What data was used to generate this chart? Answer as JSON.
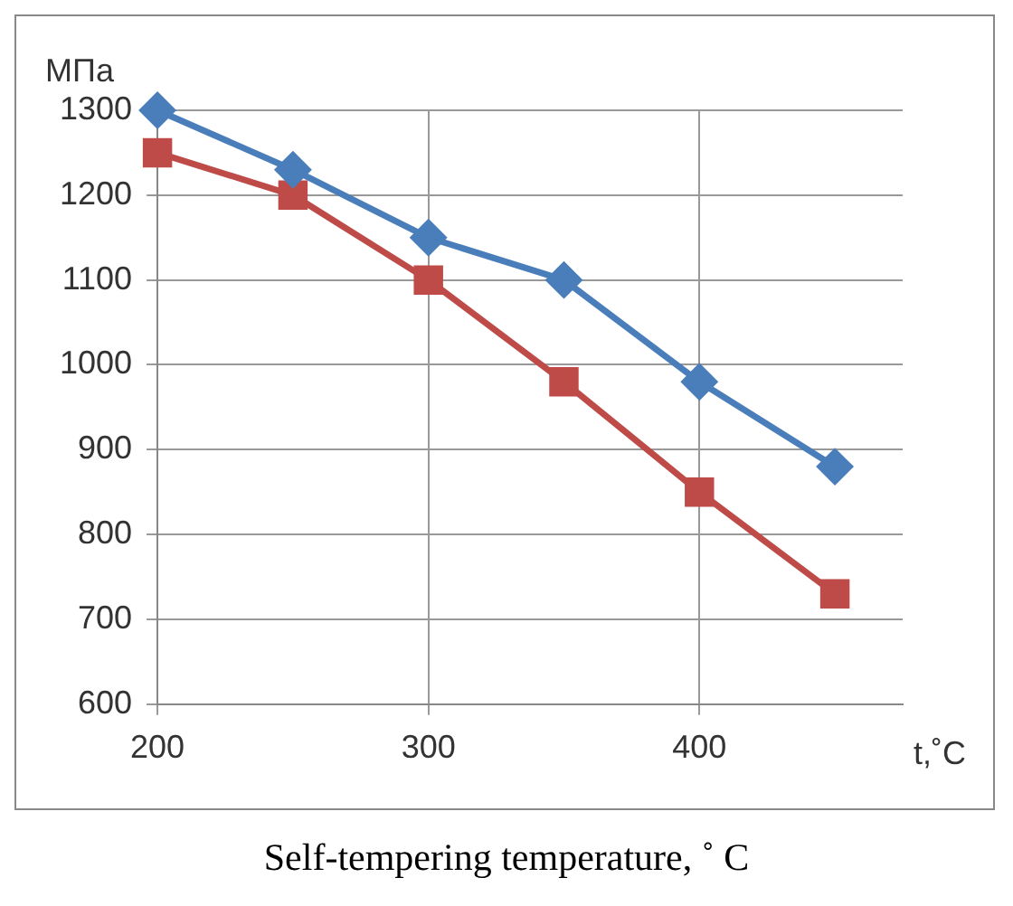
{
  "chart_data": {
    "type": "line",
    "xlabel": "t,˚C",
    "ylabel": "МПа",
    "annotations": [
      "Self-tempering temperature, ˚ C"
    ],
    "x": [
      200,
      250,
      300,
      350,
      400,
      450
    ],
    "series": [
      {
        "color": "#4a7ebb",
        "marker": "diamond",
        "values": [
          1300,
          1230,
          1150,
          1100,
          980,
          880
        ]
      },
      {
        "color": "#be4b48",
        "marker": "square",
        "values": [
          1250,
          1200,
          1100,
          980,
          850,
          730
        ]
      }
    ],
    "xlim": [
      200,
      475
    ],
    "xticks": [
      200,
      300,
      400
    ],
    "ylim": [
      600,
      1300
    ],
    "yticks": [
      600,
      700,
      800,
      900,
      1000,
      1100,
      1200,
      1300
    ],
    "grid": true,
    "legend": false
  }
}
